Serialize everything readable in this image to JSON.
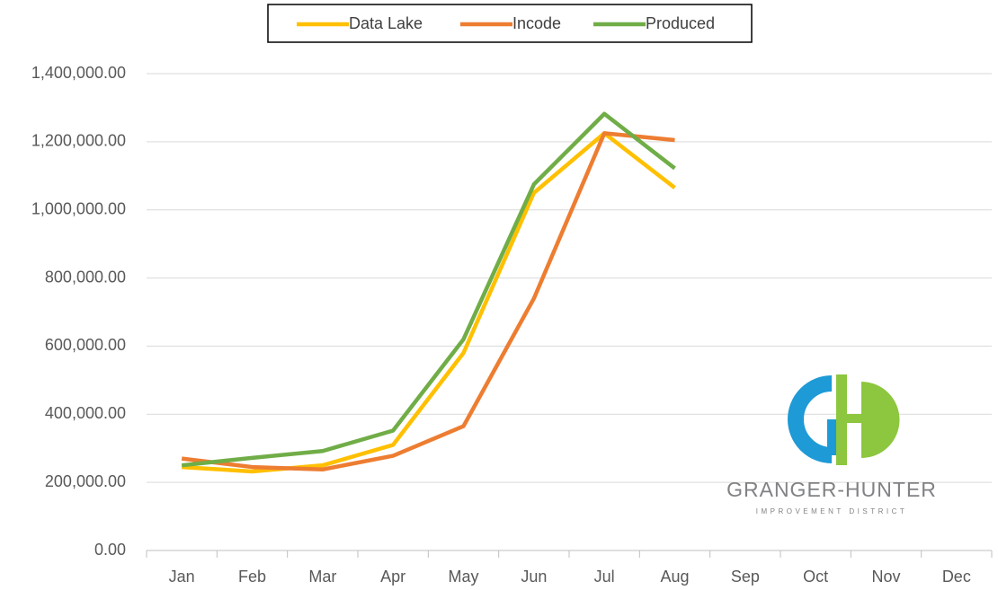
{
  "chart_data": {
    "type": "line",
    "categories": [
      "Jan",
      "Feb",
      "Mar",
      "Apr",
      "May",
      "Jun",
      "Jul",
      "Aug",
      "Sep",
      "Oct",
      "Nov",
      "Dec"
    ],
    "series": [
      {
        "name": "Data Lake",
        "color": "#ffc000",
        "values": [
          245000,
          232000,
          250000,
          310000,
          580000,
          1050000,
          1225000,
          1065000,
          null,
          null,
          null,
          null
        ]
      },
      {
        "name": "Incode",
        "color": "#ed7d31",
        "values": [
          270000,
          245000,
          238000,
          278000,
          365000,
          740000,
          1225000,
          1205000,
          null,
          null,
          null,
          null
        ]
      },
      {
        "name": "Produced",
        "color": "#70ad47",
        "values": [
          250000,
          272000,
          292000,
          352000,
          620000,
          1075000,
          1282000,
          1122000,
          null,
          null,
          null,
          null
        ]
      }
    ],
    "ylim": [
      0,
      1400000
    ],
    "yticks": [
      {
        "value": 0,
        "label": "0.00"
      },
      {
        "value": 200000,
        "label": "200,000.00"
      },
      {
        "value": 400000,
        "label": "400,000.00"
      },
      {
        "value": 600000,
        "label": "600,000.00"
      },
      {
        "value": 800000,
        "label": "800,000.00"
      },
      {
        "value": 1000000,
        "label": "1,000,000.00"
      },
      {
        "value": 1200000,
        "label": "1,200,000.00"
      },
      {
        "value": 1400000,
        "label": "1,400,000.00"
      }
    ],
    "grid": true,
    "legend": "top"
  },
  "logo": {
    "name": "GRANGER-HUNTER",
    "tagline": "IMPROVEMENT DISTRICT"
  }
}
